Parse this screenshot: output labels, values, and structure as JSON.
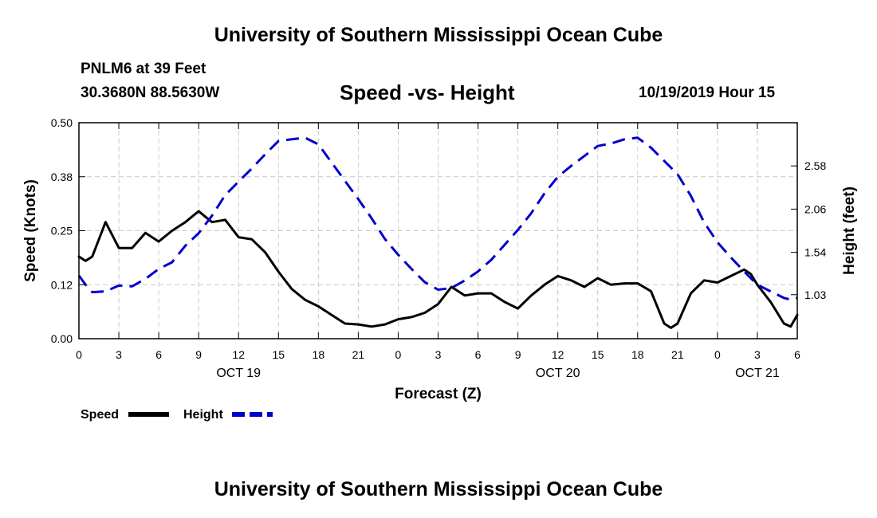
{
  "header": {
    "title": "University of Southern Mississippi Ocean Cube",
    "station": "PNLM6 at 39 Feet",
    "coords": "30.3680N 88.5630W",
    "chart_title": "Speed -vs- Height",
    "datetime": "10/19/2019 Hour 15"
  },
  "footer": {
    "title": "University of Southern Mississippi Ocean Cube"
  },
  "colors": {
    "speed": "#000000",
    "height": "#0000cc",
    "grid": "#c8c8c8"
  },
  "chart_data": {
    "type": "line",
    "title": "Speed -vs- Height",
    "xlabel": "Forecast (Z)",
    "ylabel": "Speed (Knots)",
    "y2label": "Height (feet)",
    "x_range_hours": [
      0,
      54
    ],
    "x_ticks": [
      {
        "h": 0,
        "label": "0"
      },
      {
        "h": 3,
        "label": "3"
      },
      {
        "h": 6,
        "label": "6"
      },
      {
        "h": 9,
        "label": "9"
      },
      {
        "h": 12,
        "label": "12"
      },
      {
        "h": 15,
        "label": "15"
      },
      {
        "h": 18,
        "label": "18"
      },
      {
        "h": 21,
        "label": "21"
      },
      {
        "h": 24,
        "label": "0"
      },
      {
        "h": 27,
        "label": "3"
      },
      {
        "h": 30,
        "label": "6"
      },
      {
        "h": 33,
        "label": "9"
      },
      {
        "h": 36,
        "label": "12"
      },
      {
        "h": 39,
        "label": "15"
      },
      {
        "h": 42,
        "label": "18"
      },
      {
        "h": 45,
        "label": "21"
      },
      {
        "h": 48,
        "label": "0"
      },
      {
        "h": 51,
        "label": "3"
      },
      {
        "h": 54,
        "label": "6"
      }
    ],
    "date_labels": [
      {
        "h": 12,
        "label": "OCT 19"
      },
      {
        "h": 36,
        "label": "OCT 20"
      },
      {
        "h": 51,
        "label": "OCT 21"
      }
    ],
    "y_left": {
      "range": [
        0,
        0.5
      ],
      "ticks": [
        0.0,
        0.125,
        0.25,
        0.375,
        0.5
      ],
      "tick_labels": [
        "0.00",
        "0.12",
        "0.25",
        "0.38",
        "0.50"
      ]
    },
    "y_right": {
      "range": [
        0.5,
        3.1
      ],
      "ticks": [
        1.03,
        1.54,
        2.06,
        2.58
      ],
      "tick_labels": [
        "1.03",
        "1.54",
        "2.06",
        "2.58"
      ]
    },
    "grid": true,
    "legend": "bottom-left",
    "series": [
      {
        "name": "Speed",
        "axis": "left",
        "style": "solid",
        "points": [
          [
            0,
            0.19
          ],
          [
            0.5,
            0.18
          ],
          [
            1,
            0.19
          ],
          [
            2,
            0.27
          ],
          [
            3,
            0.21
          ],
          [
            4,
            0.21
          ],
          [
            5,
            0.245
          ],
          [
            6,
            0.225
          ],
          [
            7,
            0.25
          ],
          [
            8,
            0.27
          ],
          [
            9,
            0.295
          ],
          [
            10,
            0.27
          ],
          [
            11,
            0.275
          ],
          [
            12,
            0.235
          ],
          [
            13,
            0.23
          ],
          [
            14,
            0.2
          ],
          [
            15,
            0.155
          ],
          [
            16,
            0.115
          ],
          [
            17,
            0.09
          ],
          [
            18,
            0.075
          ],
          [
            19,
            0.055
          ],
          [
            20,
            0.035
          ],
          [
            21,
            0.033
          ],
          [
            22,
            0.028
          ],
          [
            23,
            0.033
          ],
          [
            24,
            0.045
          ],
          [
            25,
            0.05
          ],
          [
            26,
            0.06
          ],
          [
            27,
            0.08
          ],
          [
            28,
            0.12
          ],
          [
            29,
            0.1
          ],
          [
            30,
            0.105
          ],
          [
            31,
            0.105
          ],
          [
            32,
            0.085
          ],
          [
            33,
            0.07
          ],
          [
            34,
            0.1
          ],
          [
            35,
            0.125
          ],
          [
            36,
            0.145
          ],
          [
            37,
            0.135
          ],
          [
            38,
            0.12
          ],
          [
            39,
            0.14
          ],
          [
            40,
            0.125
          ],
          [
            41,
            0.128
          ],
          [
            42,
            0.128
          ],
          [
            43,
            0.11
          ],
          [
            44,
            0.035
          ],
          [
            44.5,
            0.025
          ],
          [
            45,
            0.035
          ],
          [
            46,
            0.105
          ],
          [
            47,
            0.135
          ],
          [
            48,
            0.13
          ],
          [
            49,
            0.145
          ],
          [
            50,
            0.16
          ],
          [
            50.5,
            0.15
          ],
          [
            51,
            0.125
          ],
          [
            52,
            0.085
          ],
          [
            53,
            0.035
          ],
          [
            53.5,
            0.028
          ],
          [
            54,
            0.055
          ]
        ]
      },
      {
        "name": "Height",
        "axis": "right",
        "style": "dashed",
        "points": [
          [
            0,
            1.26
          ],
          [
            0.5,
            1.15
          ],
          [
            1,
            1.06
          ],
          [
            2,
            1.07
          ],
          [
            3,
            1.14
          ],
          [
            4,
            1.13
          ],
          [
            5,
            1.22
          ],
          [
            6,
            1.34
          ],
          [
            7,
            1.42
          ],
          [
            8,
            1.62
          ],
          [
            9,
            1.77
          ],
          [
            10,
            1.98
          ],
          [
            11,
            2.23
          ],
          [
            12,
            2.39
          ],
          [
            13,
            2.55
          ],
          [
            14,
            2.72
          ],
          [
            15,
            2.88
          ],
          [
            16,
            2.9
          ],
          [
            17,
            2.92
          ],
          [
            18,
            2.84
          ],
          [
            19,
            2.62
          ],
          [
            20,
            2.4
          ],
          [
            21,
            2.18
          ],
          [
            22,
            1.95
          ],
          [
            23,
            1.7
          ],
          [
            24,
            1.51
          ],
          [
            25,
            1.34
          ],
          [
            26,
            1.18
          ],
          [
            27,
            1.09
          ],
          [
            28,
            1.11
          ],
          [
            29,
            1.2
          ],
          [
            30,
            1.31
          ],
          [
            31,
            1.45
          ],
          [
            32,
            1.63
          ],
          [
            33,
            1.81
          ],
          [
            34,
            2.01
          ],
          [
            35,
            2.25
          ],
          [
            36,
            2.45
          ],
          [
            37,
            2.58
          ],
          [
            38,
            2.7
          ],
          [
            39,
            2.82
          ],
          [
            40,
            2.85
          ],
          [
            41,
            2.9
          ],
          [
            42,
            2.92
          ],
          [
            43,
            2.8
          ],
          [
            44,
            2.64
          ],
          [
            45,
            2.48
          ],
          [
            46,
            2.22
          ],
          [
            47,
            1.9
          ],
          [
            48,
            1.66
          ],
          [
            49,
            1.48
          ],
          [
            50,
            1.31
          ],
          [
            51,
            1.15
          ],
          [
            52,
            1.07
          ],
          [
            53,
            0.99
          ],
          [
            53.5,
            0.97
          ],
          [
            54,
            0.99
          ]
        ]
      }
    ]
  }
}
